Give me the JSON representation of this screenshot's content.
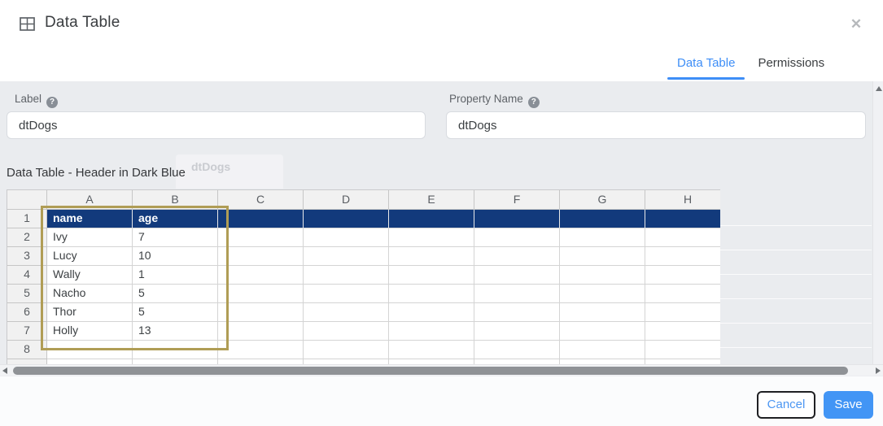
{
  "dialog": {
    "title": "Data Table",
    "close_icon": "table-icon and close-x in header",
    "tabs": [
      {
        "label": "Data Table",
        "active": true
      },
      {
        "label": "Permissions",
        "active": false
      }
    ],
    "fields": [
      {
        "label": "Label",
        "value": "dtDogs",
        "help_icon": "question-mark"
      },
      {
        "label": "Property Name",
        "value": "dtDogs",
        "help_icon": "question-mark"
      }
    ],
    "section_label": "Data Table - Header in Dark Blue",
    "background_ghost_text": "dtDogs",
    "footer": {
      "cancel_label": "Cancel",
      "save_label": "Save"
    }
  },
  "spreadsheet": {
    "columns": [
      "A",
      "B",
      "C",
      "D",
      "E",
      "F",
      "G",
      "H"
    ],
    "rows": [
      {
        "num": "1",
        "type": "header",
        "cells": [
          "name",
          "age",
          "",
          "",
          "",
          "",
          "",
          ""
        ]
      },
      {
        "num": "2",
        "type": "data",
        "cells": [
          "Ivy",
          "7",
          "",
          "",
          "",
          "",
          "",
          ""
        ]
      },
      {
        "num": "3",
        "type": "data",
        "cells": [
          "Lucy",
          "10",
          "",
          "",
          "",
          "",
          "",
          ""
        ]
      },
      {
        "num": "4",
        "type": "data",
        "cells": [
          "Wally",
          "1",
          "",
          "",
          "",
          "",
          "",
          ""
        ]
      },
      {
        "num": "5",
        "type": "data",
        "cells": [
          "Nacho",
          "5",
          "",
          "",
          "",
          "",
          "",
          ""
        ]
      },
      {
        "num": "6",
        "type": "data",
        "cells": [
          "Thor",
          "5",
          "",
          "",
          "",
          "",
          "",
          ""
        ]
      },
      {
        "num": "7",
        "type": "data",
        "cells": [
          "Holly",
          "13",
          "",
          "",
          "",
          "",
          "",
          ""
        ]
      },
      {
        "num": "8",
        "type": "data",
        "cells": [
          "",
          "",
          "",
          "",
          "",
          "",
          "",
          ""
        ]
      },
      {
        "num": "",
        "type": "data",
        "cells": [
          "",
          "",
          "",
          "",
          "",
          "",
          "",
          ""
        ]
      }
    ],
    "selection": {
      "range": "A1:B8",
      "color": "#b09d55"
    }
  },
  "colors": {
    "accent_blue": "#3e8ef7",
    "header_navy": "#123a7c",
    "selection_gold": "#b09d55",
    "save_blue": "#4295f5",
    "body_gray": "#eaecef"
  }
}
